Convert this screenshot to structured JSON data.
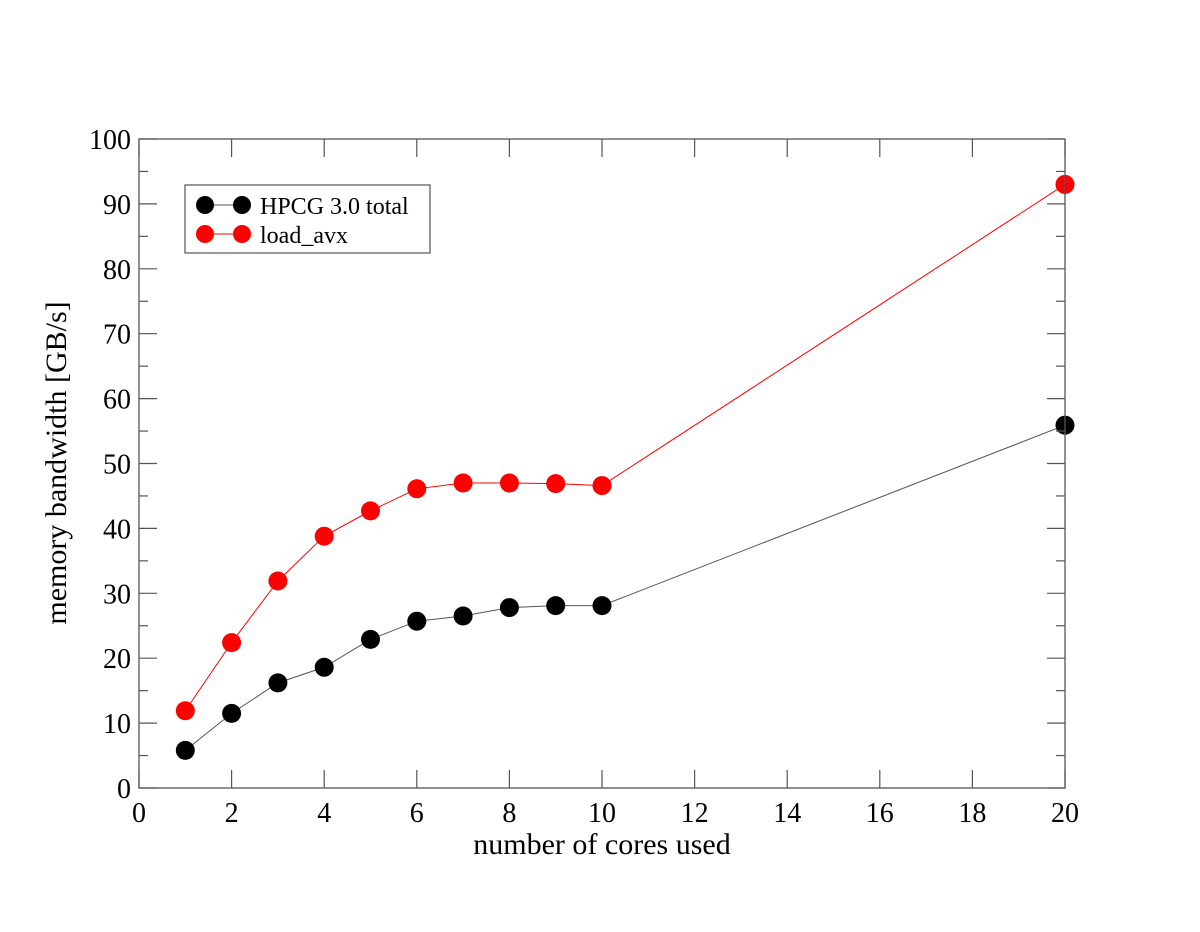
{
  "chart_data": {
    "type": "line",
    "title": "",
    "xlabel": "number of cores used",
    "ylabel": "memory bandwidth [GB/s]",
    "xlim": [
      0,
      20
    ],
    "ylim": [
      0,
      100
    ],
    "xticks": [
      0,
      2,
      4,
      6,
      8,
      10,
      12,
      14,
      16,
      18,
      20
    ],
    "yticks": [
      0,
      10,
      20,
      30,
      40,
      50,
      60,
      70,
      80,
      90,
      100
    ],
    "grid": false,
    "legend_position": "top-left",
    "x": [
      1,
      2,
      3,
      4,
      5,
      6,
      7,
      8,
      9,
      10,
      20
    ],
    "series": [
      {
        "name": "HPCG 3.0 total",
        "color": "#000000",
        "values": [
          5.8,
          11.5,
          16.2,
          18.6,
          22.9,
          25.7,
          26.5,
          27.8,
          28.1,
          28.1,
          55.9
        ]
      },
      {
        "name": "load_avx",
        "color": "#ff0000",
        "values": [
          11.9,
          22.4,
          31.9,
          38.8,
          42.7,
          46.1,
          47.0,
          47.0,
          46.9,
          46.6,
          93.0
        ]
      }
    ]
  }
}
